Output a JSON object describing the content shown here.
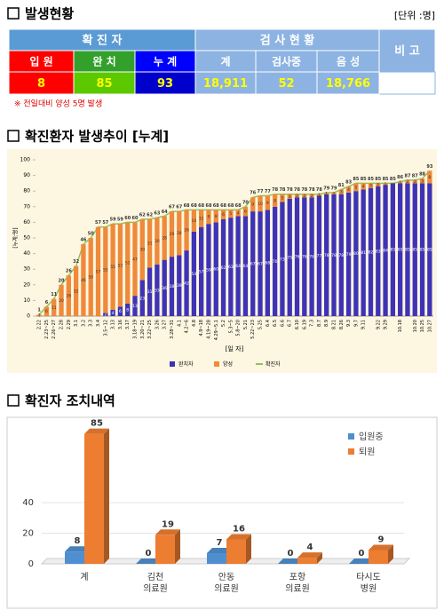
{
  "status": {
    "title": "발생현황",
    "unit": "[단위 :명]",
    "table": {
      "groups": [
        "확 진 자",
        "검 사 현 황",
        "비 고"
      ],
      "columns": [
        "입 원",
        "완 치",
        "누 계",
        "계",
        "검사중",
        "음 성"
      ],
      "values": [
        8,
        85,
        93,
        "18,911",
        52,
        "18,766"
      ]
    },
    "note": "※ 전일대비 양성 5명 발생"
  },
  "chart_data": [
    {
      "type": "bar",
      "stacked": true,
      "title": "확진환자 발생추이 [누계]",
      "x_label": "[일 자]",
      "y_label": "[누계:명]",
      "categories": [
        "2.22",
        "2.23~25",
        "2.26~27",
        "2.28",
        "2.29",
        "3.1",
        "3.2",
        "3.3",
        "3.4",
        "3.5~12",
        "3.13",
        "3.16",
        "3.17",
        "3.18~19",
        "3.20~21",
        "3.22~25",
        "3.26",
        "3.27",
        "3.28~31",
        "4.1",
        "4.2~6",
        "4.8",
        "4.9~18",
        "4.19~28",
        "4.29~5.1",
        "5.2",
        "5.3~5",
        "5.8~20",
        "5.21",
        "5.22~23",
        "5.25",
        "6.4",
        "6.5",
        "6.6",
        "6.7",
        "6.10",
        "6.19",
        "7.3",
        "8.7",
        "8.9",
        "8.21",
        "8.26",
        "9.3",
        "9.7",
        "9.11",
        null,
        "9.22",
        "9.29",
        null,
        "10.18",
        null,
        "10.20",
        "10.25",
        "10.27"
      ],
      "series": [
        {
          "name": "완치자",
          "color": "#3f33b5",
          "values": [
            0,
            0,
            0,
            0,
            0,
            0,
            0,
            0,
            0,
            2,
            4,
            6,
            8,
            13,
            23,
            31,
            33,
            36,
            38,
            39,
            42,
            54,
            57,
            59,
            60,
            62,
            63,
            64,
            64,
            67,
            67,
            68,
            70,
            73,
            75,
            76,
            76,
            76,
            77,
            78,
            78,
            78,
            79,
            80,
            81,
            82,
            83,
            84,
            85,
            85,
            85,
            85,
            85,
            85
          ]
        },
        {
          "name": "양성",
          "color": "#ef8a3a",
          "values": [
            1,
            6,
            11,
            20,
            26,
            32,
            46,
            50,
            57,
            55,
            55,
            53,
            52,
            47,
            39,
            31,
            30,
            28,
            29,
            28,
            26,
            14,
            11,
            9,
            8,
            6,
            5,
            4,
            6,
            9,
            10,
            9,
            8,
            5,
            3,
            2,
            2,
            2,
            1,
            1,
            1,
            3,
            4,
            5,
            4,
            3,
            2,
            1,
            0,
            1,
            2,
            2,
            3,
            8
          ]
        },
        {
          "name": "확진자",
          "type": "line",
          "color": "#8fc45a",
          "values": [
            1,
            6,
            11,
            20,
            26,
            32,
            46,
            50,
            57,
            57,
            59,
            59,
            60,
            60,
            62,
            62,
            63,
            64,
            67,
            67,
            68,
            68,
            68,
            68,
            68,
            68,
            68,
            68,
            70,
            76,
            77,
            77,
            78,
            78,
            78,
            78,
            78,
            78,
            78,
            79,
            79,
            81,
            83,
            85,
            85,
            85,
            85,
            85,
            85,
            86,
            87,
            87,
            88,
            93
          ]
        }
      ],
      "ylim": [
        0,
        100
      ],
      "yticks": [
        0,
        10,
        20,
        30,
        40,
        50,
        60,
        70,
        80,
        90,
        100
      ],
      "grid": false,
      "legend": "bottom"
    },
    {
      "type": "bar3d",
      "title": "확진자 조치내역",
      "categories": [
        "계",
        "김천\n의료원",
        "안동\n의료원",
        "포항\n의료원",
        "타시도\n병원"
      ],
      "series": [
        {
          "name": "입원중",
          "color": "#4f8fcf",
          "values": [
            8,
            0,
            7,
            0,
            0
          ]
        },
        {
          "name": "퇴원",
          "color": "#ed7d31",
          "values": [
            85,
            19,
            16,
            4,
            9
          ]
        }
      ],
      "ylim": [
        0,
        90
      ],
      "yticks": [
        0,
        20,
        40
      ],
      "grid": true,
      "legend": "top-right"
    }
  ]
}
